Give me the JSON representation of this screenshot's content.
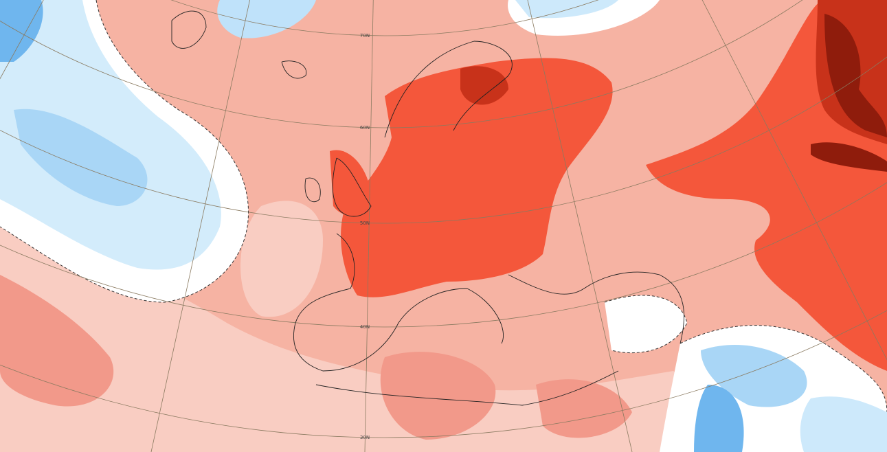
{
  "map": {
    "latitude_labels": [
      "70N",
      "60N",
      "50N",
      "40N",
      "30N"
    ]
  }
}
